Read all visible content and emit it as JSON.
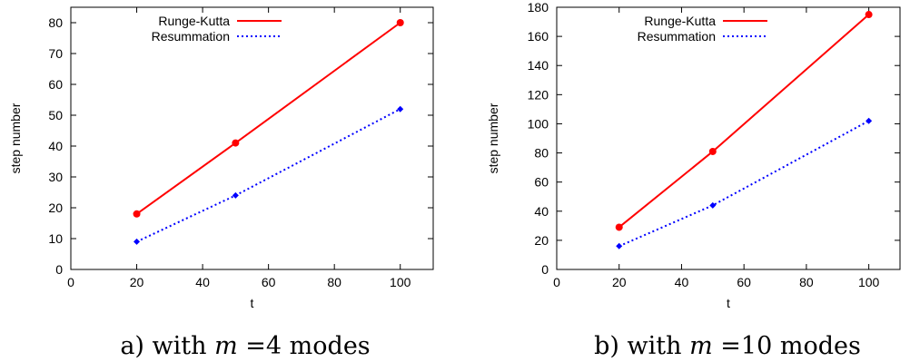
{
  "chart_data": [
    {
      "type": "line",
      "xlabel": "t",
      "ylabel": "step number",
      "xlim": [
        0,
        110
      ],
      "ylim": [
        0,
        85
      ],
      "xticks": [
        0,
        20,
        40,
        60,
        80,
        100
      ],
      "yticks": [
        0,
        10,
        20,
        30,
        40,
        50,
        60,
        70,
        80
      ],
      "x": [
        20,
        50,
        100
      ],
      "grid": false,
      "legend_position": "top-left",
      "series": [
        {
          "name": "Runge-Kutta",
          "values": [
            18,
            41,
            80
          ],
          "color": "#ff0000",
          "dash": "solid",
          "marker": "circle"
        },
        {
          "name": "Resummation",
          "values": [
            9,
            24,
            52
          ],
          "color": "#0000ff",
          "dash": "dotted",
          "marker": "diamond"
        }
      ],
      "caption": {
        "prefix": "a) with ",
        "var": "m",
        "suffix": " =4 modes"
      }
    },
    {
      "type": "line",
      "xlabel": "t",
      "ylabel": "step number",
      "xlim": [
        0,
        110
      ],
      "ylim": [
        0,
        180
      ],
      "xticks": [
        0,
        20,
        40,
        60,
        80,
        100
      ],
      "yticks": [
        0,
        20,
        40,
        60,
        80,
        100,
        120,
        140,
        160,
        180
      ],
      "x": [
        20,
        50,
        100
      ],
      "grid": false,
      "legend_position": "top-left",
      "series": [
        {
          "name": "Runge-Kutta",
          "values": [
            29,
            81,
            175
          ],
          "color": "#ff0000",
          "dash": "solid",
          "marker": "circle"
        },
        {
          "name": "Resummation",
          "values": [
            16,
            44,
            102
          ],
          "color": "#0000ff",
          "dash": "dotted",
          "marker": "diamond"
        }
      ],
      "caption": {
        "prefix": "b) with ",
        "var": "m",
        "suffix": " =10 modes"
      }
    }
  ]
}
